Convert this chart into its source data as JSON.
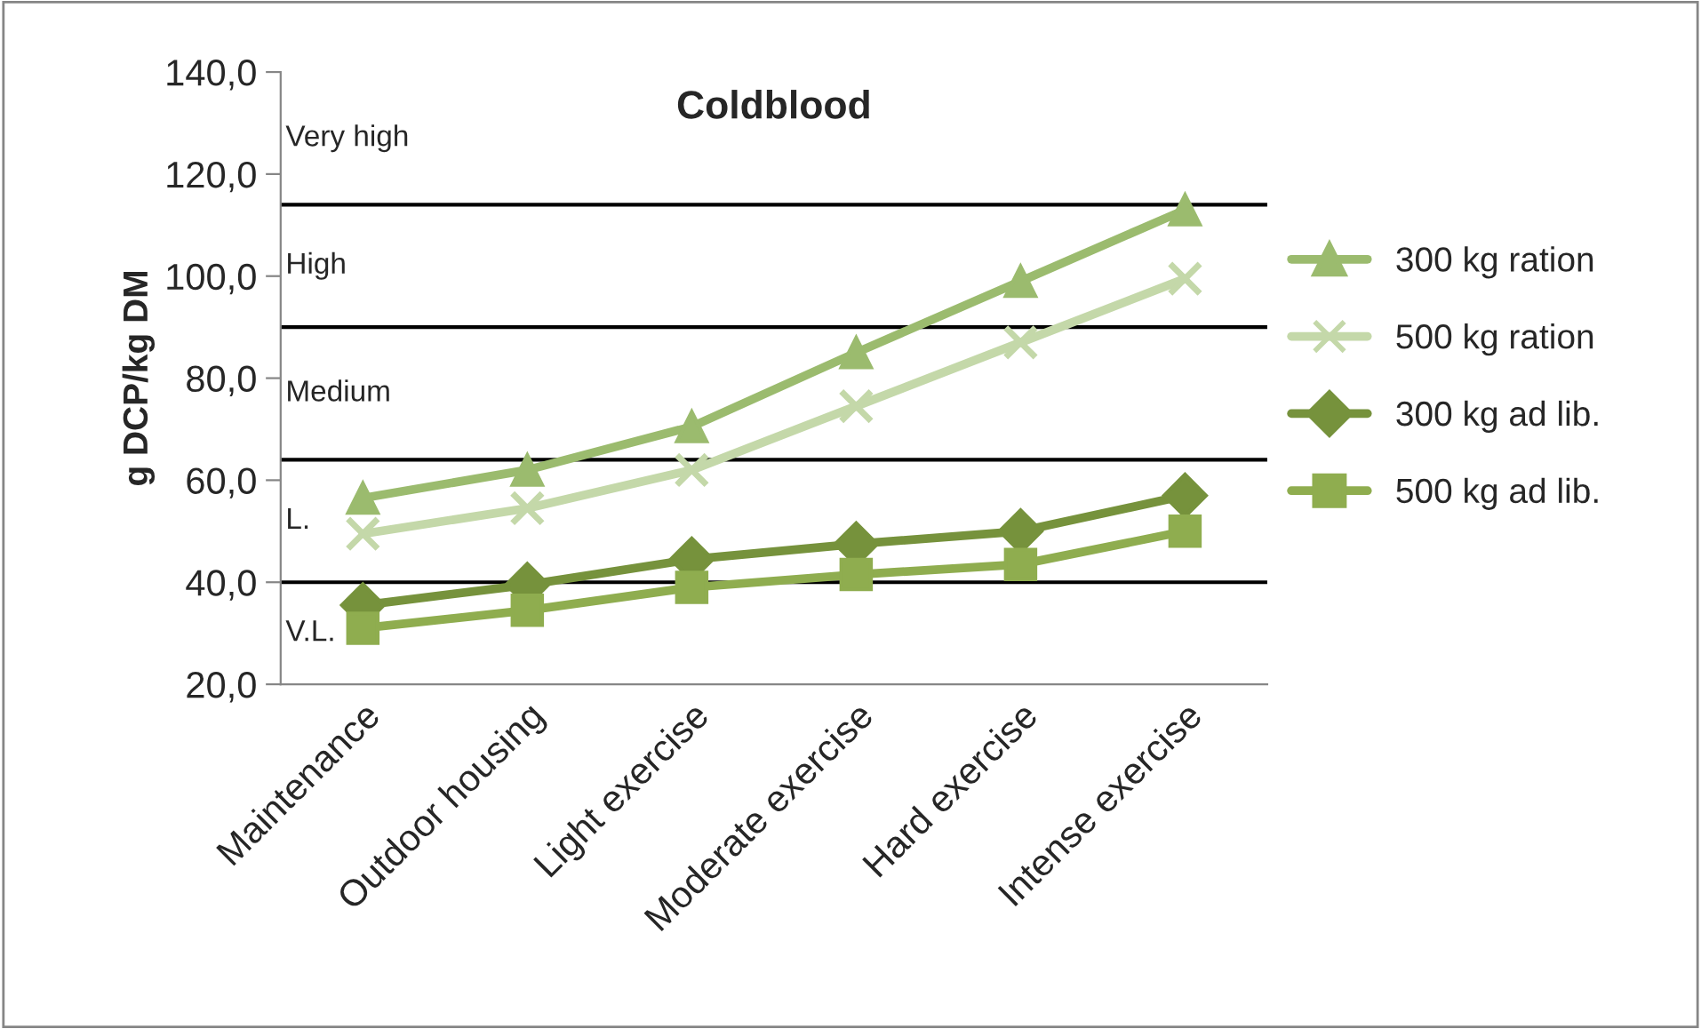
{
  "chart_data": {
    "type": "line",
    "title": "Coldblood",
    "ylabel": "g DCP/kg DM",
    "categories": [
      "Maintenance",
      "Outdoor housing",
      "Light exercise",
      "Moderate exercise",
      "Hard exercise",
      "Intense exercise"
    ],
    "series": [
      {
        "name": "300 kg ration",
        "color": "#9bbb6e",
        "marker": "triangle",
        "values": [
          56.5,
          62,
          70.5,
          85,
          99,
          113
        ]
      },
      {
        "name": "500 kg ration",
        "color": "#c4d8a9",
        "marker": "cross",
        "values": [
          49.5,
          54.5,
          62,
          74.5,
          87,
          99.5
        ]
      },
      {
        "name": "300 kg ad lib.",
        "color": "#76923c",
        "marker": "diamond",
        "values": [
          35.5,
          39.5,
          44.5,
          47.5,
          50,
          57
        ]
      },
      {
        "name": "500 kg ad lib.",
        "color": "#8fad4f",
        "marker": "square",
        "values": [
          31,
          34.5,
          39,
          41.5,
          43.5,
          50
        ]
      }
    ],
    "ylim": [
      20,
      140
    ],
    "yticks": [
      {
        "value": 20,
        "label": "20,0"
      },
      {
        "value": 40,
        "label": "40,0"
      },
      {
        "value": 60,
        "label": "60,0"
      },
      {
        "value": 80,
        "label": "80,0"
      },
      {
        "value": 100,
        "label": "100,0"
      },
      {
        "value": 120,
        "label": "120,0"
      },
      {
        "value": 140,
        "label": "140,0"
      }
    ],
    "ref_lines": [
      {
        "axis": "y",
        "value": 40,
        "color": "#000000"
      },
      {
        "axis": "y",
        "value": 64,
        "color": "#000000"
      },
      {
        "axis": "y",
        "value": 90,
        "color": "#000000"
      },
      {
        "axis": "y",
        "value": 114,
        "color": "#000000"
      }
    ],
    "annotations": [
      "V.L.",
      "L.",
      "Medium",
      "High",
      "Very high"
    ],
    "grid": false,
    "legend": "right",
    "line_style": "solid"
  }
}
